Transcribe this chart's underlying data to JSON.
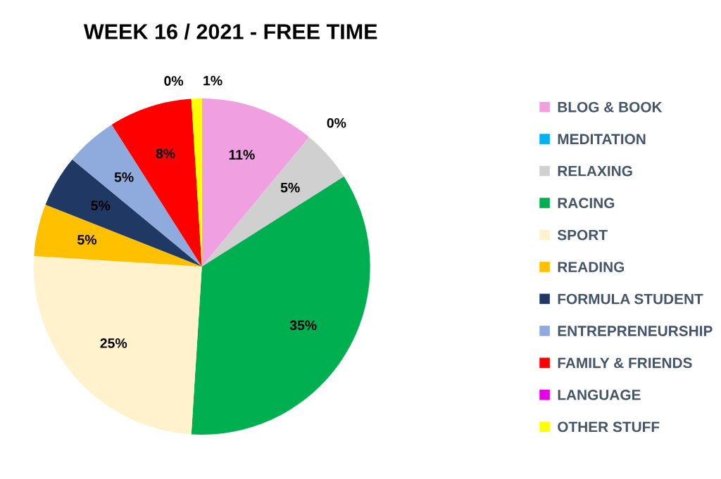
{
  "chart_data": {
    "type": "pie",
    "title": "WEEK 16 / 2021 - FREE TIME",
    "categories": [
      "BLOG & BOOK",
      "MEDITATION",
      "RELAXING",
      "RACING",
      "SPORT",
      "READING",
      "FORMULA STUDENT",
      "ENTREPRENEURSHIP",
      "FAMILY & FRIENDS",
      "LANGUAGE",
      "OTHER STUFF"
    ],
    "values": [
      11,
      0,
      5,
      35,
      25,
      5,
      5,
      5,
      8,
      0,
      1
    ],
    "value_labels": [
      "11%",
      "0%",
      "5%",
      "35%",
      "25%",
      "5%",
      "5%",
      "5%",
      "8%",
      "0%",
      "1%"
    ],
    "colors": [
      "#f0a0e0",
      "#00b0f0",
      "#d0d0d0",
      "#00b050",
      "#fff2cc",
      "#ffc000",
      "#203864",
      "#8faadc",
      "#ff0000",
      "#e600e6",
      "#ffff00"
    ],
    "legend": "right"
  }
}
